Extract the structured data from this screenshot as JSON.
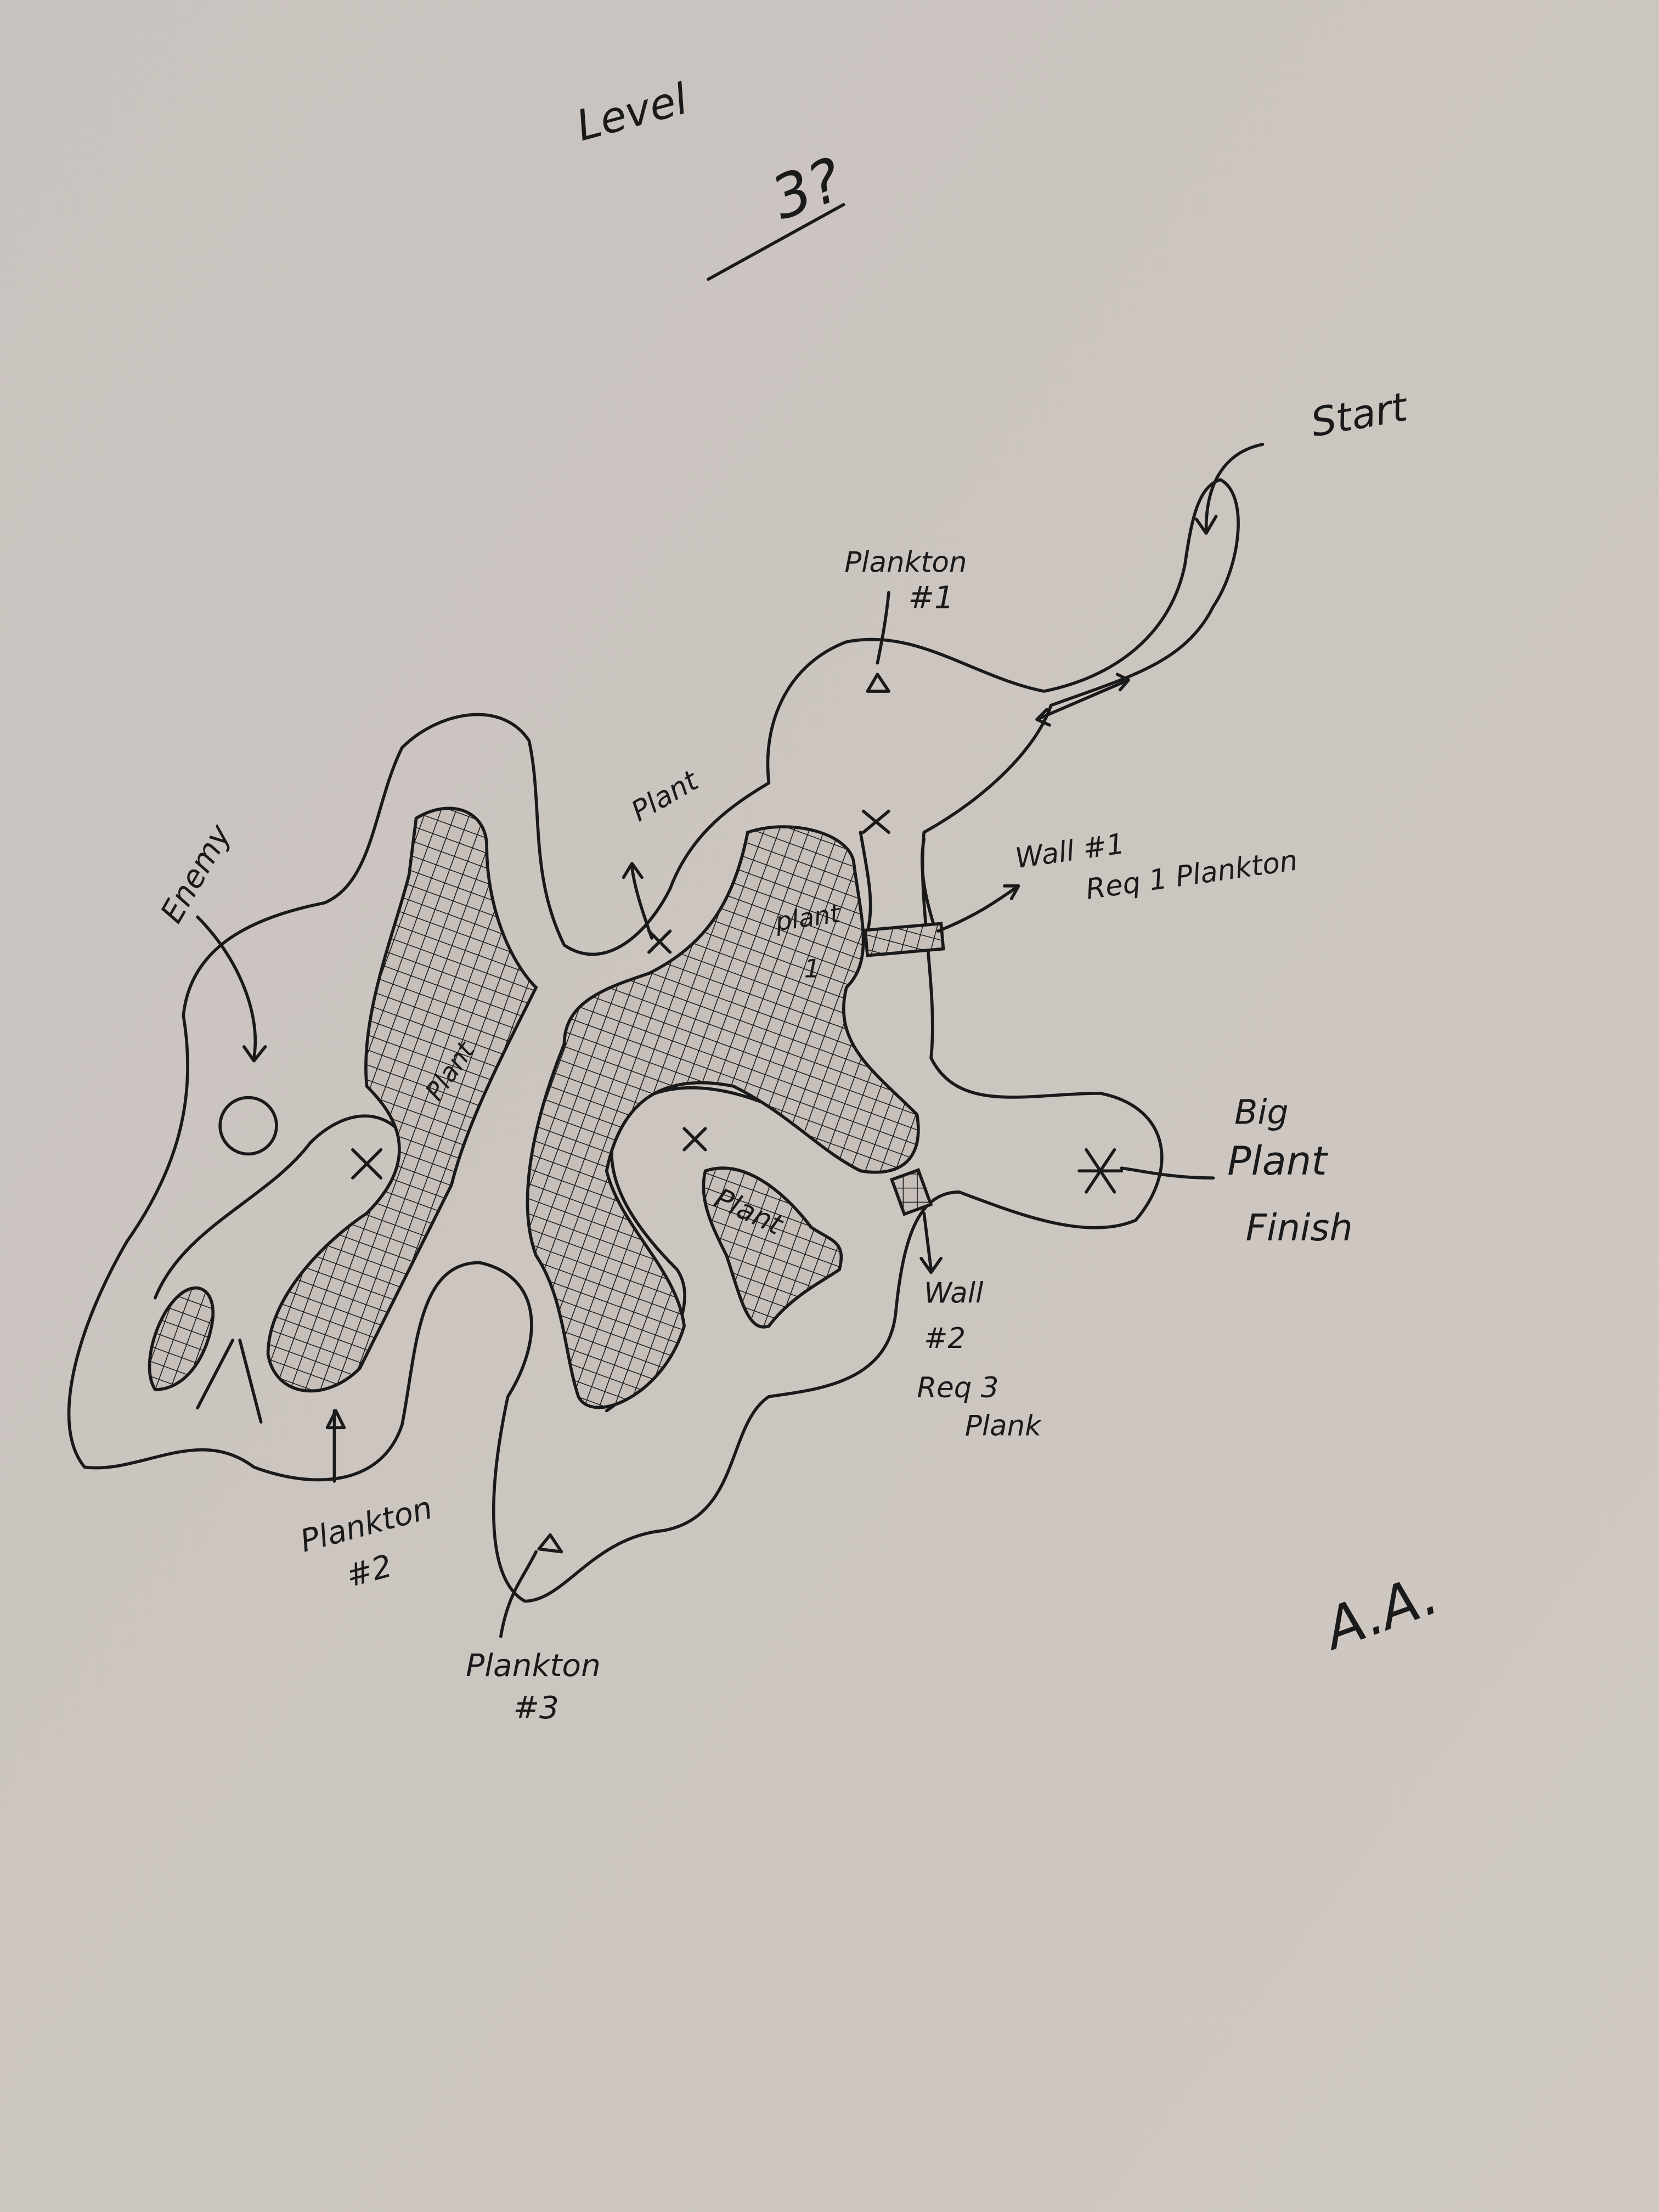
{
  "header": {
    "title": "Level",
    "subtitle": "3?"
  },
  "labels": {
    "start": "Start",
    "plankton_1": [
      "Plankton",
      "#1"
    ],
    "plant_top": "Plant",
    "wall_1": [
      "Wall #1",
      "Req 1 Plankton"
    ],
    "plant_center": [
      "plant",
      "1"
    ],
    "enemy": "Enemy",
    "plant_left": "Plant",
    "plant_lower": "Plant",
    "finish": [
      "Big",
      "Plant",
      "Finish"
    ],
    "wall_2": [
      "Wall",
      "#2",
      "Req 3",
      "Plank"
    ],
    "plankton_2": [
      "Plankton",
      "#2"
    ],
    "plankton_3": [
      "Plankton",
      "#3"
    ],
    "signature": "A.A."
  }
}
